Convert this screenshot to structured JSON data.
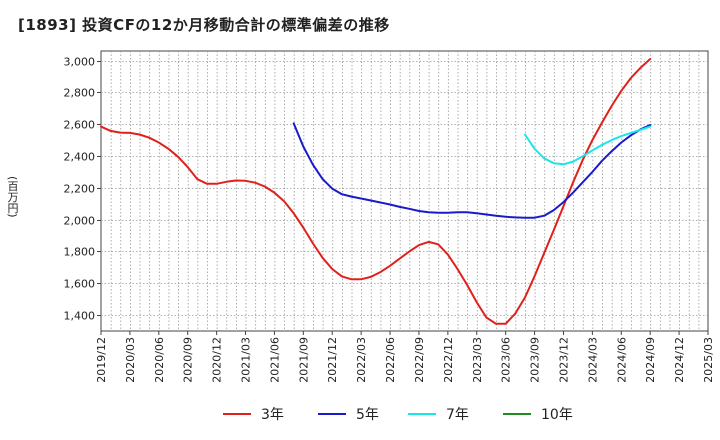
{
  "chart_data": {
    "type": "line",
    "title": "[1893]  投資CFの12か月移動合計の標準偏差の推移",
    "xlabel": "",
    "ylabel": "(百万円)",
    "ylim": [
      1300,
      3060
    ],
    "yticks": [
      1400,
      1600,
      1800,
      2000,
      2200,
      2400,
      2600,
      2800,
      3000
    ],
    "ytick_labels": [
      "1,400",
      "1,600",
      "1,800",
      "2,000",
      "2,200",
      "2,400",
      "2,600",
      "2,800",
      "3,000"
    ],
    "xtick_labels": [
      "2019/12",
      "2020/03",
      "2020/06",
      "2020/09",
      "2020/12",
      "2021/03",
      "2021/06",
      "2021/09",
      "2021/12",
      "2022/03",
      "2022/06",
      "2022/09",
      "2022/12",
      "2023/03",
      "2023/06",
      "2023/09",
      "2023/12",
      "2024/03",
      "2024/06",
      "2024/09",
      "2024/12",
      "2025/03"
    ],
    "x_start": "2019/12",
    "x_months": 63,
    "grid": true,
    "legend_position": "bottom",
    "series": [
      {
        "name": "3年",
        "color": "#e0201b",
        "x": [
          "2019/12",
          "2020/01",
          "2020/02",
          "2020/03",
          "2020/04",
          "2020/05",
          "2020/06",
          "2020/07",
          "2020/08",
          "2020/09",
          "2020/10",
          "2020/11",
          "2020/12",
          "2021/01",
          "2021/02",
          "2021/03",
          "2021/04",
          "2021/05",
          "2021/06",
          "2021/07",
          "2021/08",
          "2021/09",
          "2021/10",
          "2021/11",
          "2021/12",
          "2022/01",
          "2022/02",
          "2022/03",
          "2022/04",
          "2022/05",
          "2022/06",
          "2022/07",
          "2022/08",
          "2022/09",
          "2022/10",
          "2022/11",
          "2022/12",
          "2023/01",
          "2023/02",
          "2023/03",
          "2023/04",
          "2023/05",
          "2023/06",
          "2023/07",
          "2023/08",
          "2023/09",
          "2023/10",
          "2023/11",
          "2023/12",
          "2024/01",
          "2024/02",
          "2024/03",
          "2024/04",
          "2024/05",
          "2024/06",
          "2024/07",
          "2024/08",
          "2024/09"
        ],
        "values": [
          2585,
          2558,
          2547,
          2545,
          2535,
          2515,
          2485,
          2445,
          2395,
          2330,
          2255,
          2225,
          2225,
          2238,
          2246,
          2244,
          2232,
          2208,
          2170,
          2115,
          2040,
          1950,
          1850,
          1760,
          1690,
          1643,
          1625,
          1625,
          1640,
          1670,
          1710,
          1755,
          1800,
          1840,
          1860,
          1845,
          1780,
          1690,
          1590,
          1480,
          1385,
          1345,
          1345,
          1410,
          1510,
          1645,
          1790,
          1935,
          2085,
          2235,
          2375,
          2500,
          2610,
          2715,
          2810,
          2890,
          2955,
          3010
        ]
      },
      {
        "name": "5年",
        "color": "#1a1acc",
        "x": [
          "2021/08",
          "2021/09",
          "2021/10",
          "2021/11",
          "2021/12",
          "2022/01",
          "2022/02",
          "2022/03",
          "2022/04",
          "2022/05",
          "2022/06",
          "2022/07",
          "2022/08",
          "2022/09",
          "2022/10",
          "2022/11",
          "2022/12",
          "2023/01",
          "2023/02",
          "2023/03",
          "2023/04",
          "2023/05",
          "2023/06",
          "2023/07",
          "2023/08",
          "2023/09",
          "2023/10",
          "2023/11",
          "2023/12",
          "2024/01",
          "2024/02",
          "2024/03",
          "2024/04",
          "2024/05",
          "2024/06",
          "2024/07",
          "2024/08",
          "2024/09"
        ],
        "values": [
          2605,
          2460,
          2345,
          2255,
          2195,
          2160,
          2145,
          2133,
          2120,
          2108,
          2095,
          2080,
          2068,
          2054,
          2046,
          2043,
          2043,
          2046,
          2046,
          2040,
          2032,
          2025,
          2018,
          2014,
          2012,
          2012,
          2025,
          2060,
          2110,
          2170,
          2235,
          2300,
          2370,
          2430,
          2485,
          2530,
          2568,
          2595
        ]
      },
      {
        "name": "7年",
        "color": "#19e6e6",
        "x": [
          "2023/08",
          "2023/09",
          "2023/10",
          "2023/11",
          "2023/12",
          "2024/01",
          "2024/02",
          "2024/03",
          "2024/04",
          "2024/05",
          "2024/06",
          "2024/07",
          "2024/08",
          "2024/09"
        ],
        "values": [
          2535,
          2445,
          2385,
          2355,
          2348,
          2365,
          2398,
          2435,
          2470,
          2500,
          2525,
          2545,
          2565,
          2585
        ]
      },
      {
        "name": "10年",
        "color": "#1e8c1e",
        "x": [],
        "values": []
      }
    ]
  }
}
